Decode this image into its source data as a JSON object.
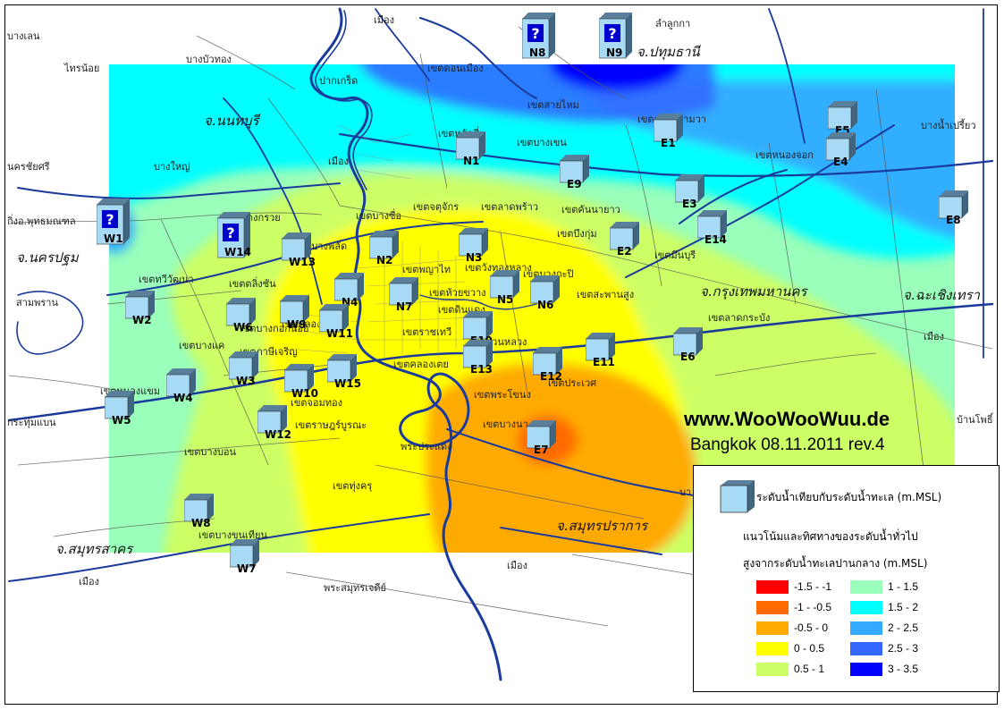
{
  "watermark": "www.WooWooWuu.de",
  "subtitle": "Bangkok 08.11.2011 rev.4",
  "legend": {
    "station_label": "ระดับน้ำเทียบกับระดับน้ำทะเล  (m.MSL)",
    "line1": "แนวโน้มและทิศทางของระดับน้ำทั่วไป",
    "line2": "สูงจากระดับน้ำทะเลปานกลาง  (m.MSL)",
    "ranges": [
      {
        "label": "-1.5 - -1",
        "color": "#ff0000"
      },
      {
        "label": "-1 - -0.5",
        "color": "#ff6a00"
      },
      {
        "label": "-0.5 - 0",
        "color": "#ffaa00"
      },
      {
        "label": "0 - 0.5",
        "color": "#ffff00"
      },
      {
        "label": "0.5 - 1",
        "color": "#ccff66"
      },
      {
        "label": "1 - 1.5",
        "color": "#99ffbb"
      },
      {
        "label": "1.5 - 2",
        "color": "#00ffff"
      },
      {
        "label": "2 - 2.5",
        "color": "#33aaff"
      },
      {
        "label": "2.5 - 3",
        "color": "#3366ff"
      },
      {
        "label": "3 - 3.5",
        "color": "#0000ff"
      }
    ]
  },
  "provinces": [
    {
      "name": "จ.นนทบุรี"
    },
    {
      "name": "จ.ปทุมธานี"
    },
    {
      "name": "จ.นครปฐม"
    },
    {
      "name": "จ.กรุงเทพมหานคร"
    },
    {
      "name": "จ.ฉะเชิงเทรา"
    },
    {
      "name": "จ.สมุทรปราการ"
    },
    {
      "name": "จ.สมุทรสาคร"
    }
  ],
  "places": [
    {
      "name": "บางเลน"
    },
    {
      "name": "ไทรน้อย"
    },
    {
      "name": "บางบัวทอง"
    },
    {
      "name": "เมือง"
    },
    {
      "name": "ลำลูกกา"
    },
    {
      "name": "ปากเกร็ด"
    },
    {
      "name": "เขตดอนเมือง"
    },
    {
      "name": "เขตสายไหม"
    },
    {
      "name": "เขตคลองสามวา"
    },
    {
      "name": "บางน้ำเปรี้ยว"
    },
    {
      "name": "เขตหลักสี่"
    },
    {
      "name": "เขตบางเขน"
    },
    {
      "name": "เขตหนองจอก"
    },
    {
      "name": "นครชัยศรี"
    },
    {
      "name": "บางใหญ่"
    },
    {
      "name": "เมือง"
    },
    {
      "name": "กิ่งอ.พุทธมณฑล"
    },
    {
      "name": "บางกรวย"
    },
    {
      "name": "เขตบางซื่อ"
    },
    {
      "name": "เขตจตุจักร"
    },
    {
      "name": "เขตลาดพร้าว"
    },
    {
      "name": "เขตคันนายาว"
    },
    {
      "name": "เขตบึงกุ่ม"
    },
    {
      "name": "เขตมีนบุรี"
    },
    {
      "name": "เขตทวีวัฒนา"
    },
    {
      "name": "เขตตลิ่งชัน"
    },
    {
      "name": "เขตบางพลัด"
    },
    {
      "name": "เขตบางกะปิ"
    },
    {
      "name": "เขตห้วยขวาง"
    },
    {
      "name": "เขตพญาไท"
    },
    {
      "name": "เขตวังทองหลาง"
    },
    {
      "name": "เขตสะพานสูง"
    },
    {
      "name": "สามพราน"
    },
    {
      "name": "เขตบางแค"
    },
    {
      "name": "เขตภาษีเจริญ"
    },
    {
      "name": "เขตลาดกระบัง"
    },
    {
      "name": "เมือง"
    },
    {
      "name": "เขตหนองแขม"
    },
    {
      "name": "เขตสวนหลวง"
    },
    {
      "name": "เขตประเวศ"
    },
    {
      "name": "กระทุ่มแบน"
    },
    {
      "name": "เขตจอมทอง"
    },
    {
      "name": "เขตราษฎร์บูรณะ"
    },
    {
      "name": "เขตพระโขนง"
    },
    {
      "name": "บ้านโพธิ์"
    },
    {
      "name": "เขตบางนา"
    },
    {
      "name": "เขตบางบอน"
    },
    {
      "name": "เขตทุ่งครุ"
    },
    {
      "name": "พระประแดง"
    },
    {
      "name": "บา"
    },
    {
      "name": "เขตบางขุนเทียน"
    },
    {
      "name": "เมือง"
    },
    {
      "name": "เมือง"
    },
    {
      "name": "พระสมุทรเจดีย์"
    },
    {
      "name": "เขตคลองสาน"
    },
    {
      "name": "เขตบางกอกน้อย"
    },
    {
      "name": "เขตดินแดง"
    },
    {
      "name": "เขตคลองเตย"
    },
    {
      "name": "เขตราชเทวี"
    }
  ],
  "stations": [
    {
      "id": "N8",
      "unknown": true
    },
    {
      "id": "N9",
      "unknown": true
    },
    {
      "id": "W1",
      "unknown": true
    },
    {
      "id": "W14",
      "unknown": true
    },
    {
      "id": "E5"
    },
    {
      "id": "E4"
    },
    {
      "id": "E1"
    },
    {
      "id": "N1"
    },
    {
      "id": "E9"
    },
    {
      "id": "E3"
    },
    {
      "id": "E14"
    },
    {
      "id": "E8"
    },
    {
      "id": "E2"
    },
    {
      "id": "N2"
    },
    {
      "id": "N3"
    },
    {
      "id": "W13"
    },
    {
      "id": "N4"
    },
    {
      "id": "N7"
    },
    {
      "id": "N5"
    },
    {
      "id": "N6"
    },
    {
      "id": "W2"
    },
    {
      "id": "W6"
    },
    {
      "id": "W9"
    },
    {
      "id": "W11"
    },
    {
      "id": "E10"
    },
    {
      "id": "E11"
    },
    {
      "id": "E6"
    },
    {
      "id": "W3"
    },
    {
      "id": "W15"
    },
    {
      "id": "E13"
    },
    {
      "id": "E12"
    },
    {
      "id": "W10"
    },
    {
      "id": "W4"
    },
    {
      "id": "W5"
    },
    {
      "id": "W12"
    },
    {
      "id": "E7"
    },
    {
      "id": "W8"
    },
    {
      "id": "W7"
    }
  ]
}
